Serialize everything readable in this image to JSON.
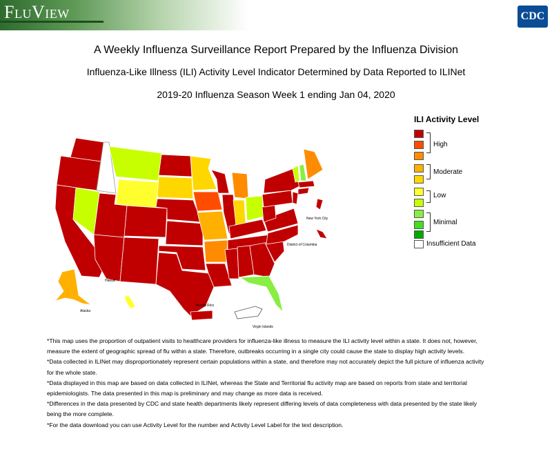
{
  "banner": {
    "logo": "FluView",
    "agency": "CDC"
  },
  "titles": {
    "line1": "A Weekly Influenza Surveillance Report Prepared by the Influenza Division",
    "line2": "Influenza-Like Illness (ILI) Activity Level Indicator Determined by Data Reported to ILINet",
    "line3": "2019-20 Influenza Season Week 1 ending Jan 04, 2020"
  },
  "legend": {
    "title": "ILI Activity Level",
    "levels": [
      {
        "color": "#c00000"
      },
      {
        "color": "#ff4d00"
      },
      {
        "color": "#ff8c00"
      },
      {
        "color": "#ffb000"
      },
      {
        "color": "#ffd700"
      },
      {
        "color": "#ffff30"
      },
      {
        "color": "#c8ff00"
      },
      {
        "color": "#88ee44"
      },
      {
        "color": "#44dd22"
      },
      {
        "color": "#00aa00"
      },
      {
        "color": "#ffffff"
      }
    ],
    "labels": {
      "high": "High",
      "moderate": "Moderate",
      "low": "Low",
      "minimal": "Minimal",
      "insufficient": "Insufficient Data"
    }
  },
  "map": {
    "labels": {
      "hawaii": "Hawaii",
      "alaska": "Alaska",
      "puerto_rico": "Puerto Rico",
      "virgin_islands": "Virgin Islands",
      "nyc": "New York City",
      "dc": "District of Columbia"
    }
  },
  "notes": [
    "*This map uses the proportion of outpatient visits to healthcare providers for influenza-like illness to measure the ILI activity level within a state. It does not, however, measure the extent of geographic spread of flu within a state. Therefore, outbreaks occurring in a single city could cause the state to display high activity levels.",
    "*Data collected in ILINet may disproportionately represent certain populations within a state, and therefore may not accurately depict the full picture of influenza activity for the whole state.",
    "*Data displayed in this map are based on data collected in ILINet, whereas the State and Territorial flu activity map are based on reports from state and territorial epidemiologists. The data presented in this map is preliminary and may change as more data is received.",
    "*Differences in the data presented by CDC and state health departments likely represent differing levels of data completeness with data presented by the state likely being the more complete.",
    "*For the data download you can use Activity Level for the number and Activity Level Label for the text description."
  ]
}
